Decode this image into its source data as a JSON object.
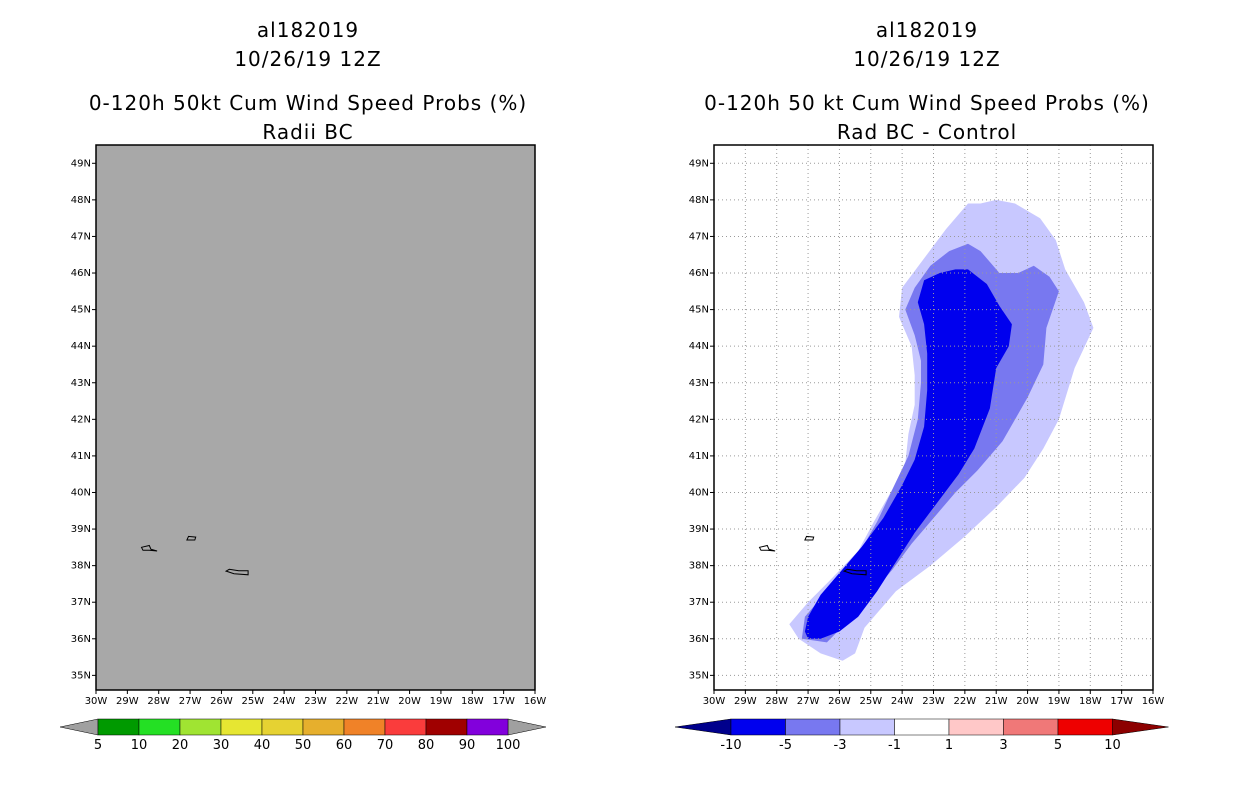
{
  "chart_data": [
    {
      "type": "heatmap",
      "title_line1": "al182019",
      "title_line2": "10/26/19 12Z",
      "title_line3": "0-120h 50kt Cum Wind Speed Probs (%)",
      "subtitle": "Radii BC",
      "y_ticks": [
        "35N",
        "36N",
        "37N",
        "38N",
        "39N",
        "40N",
        "41N",
        "42N",
        "43N",
        "44N",
        "45N",
        "46N",
        "47N",
        "48N",
        "49N"
      ],
      "x_ticks": [
        "30W",
        "29W",
        "28W",
        "27W",
        "26W",
        "25W",
        "24W",
        "23W",
        "22W",
        "21W",
        "20W",
        "19W",
        "18W",
        "17W",
        "16W"
      ],
      "lon_range": [
        -30,
        -16
      ],
      "lat_range": [
        34.6,
        49.5
      ],
      "grid": false,
      "background": "#a8a8a8",
      "colorbar": {
        "labels": [
          "5",
          "10",
          "20",
          "30",
          "40",
          "50",
          "60",
          "70",
          "80",
          "90",
          "100"
        ],
        "colors": [
          "#009a00",
          "#24e024",
          "#a0e432",
          "#e6e632",
          "#e6d232",
          "#e6af2d",
          "#f08228",
          "#fa3c3c",
          "#a00000",
          "#8200dc"
        ],
        "end_color": "#a0a0a0"
      }
    },
    {
      "type": "heatmap",
      "title_line1": "al182019",
      "title_line2": "10/26/19 12Z",
      "title_line3": "0-120h 50 kt Cum Wind Speed Probs (%)",
      "subtitle": "Rad BC - Control",
      "y_ticks": [
        "35N",
        "36N",
        "37N",
        "38N",
        "39N",
        "40N",
        "41N",
        "42N",
        "43N",
        "44N",
        "45N",
        "46N",
        "47N",
        "48N",
        "49N"
      ],
      "x_ticks": [
        "30W",
        "29W",
        "28W",
        "27W",
        "26W",
        "25W",
        "24W",
        "23W",
        "22W",
        "21W",
        "20W",
        "19W",
        "18W",
        "17W",
        "16W"
      ],
      "lon_range": [
        -30,
        -16
      ],
      "lat_range": [
        34.6,
        49.5
      ],
      "grid": true,
      "contour_levels": [
        -10,
        -5,
        -3,
        -1
      ],
      "contours": [
        {
          "level": -1,
          "color": "#c8c8ff",
          "points": [
            [
              -25.9,
              35.4
            ],
            [
              -26.6,
              35.6
            ],
            [
              -27.3,
              36.0
            ],
            [
              -27.6,
              36.4
            ],
            [
              -27.0,
              37.0
            ],
            [
              -26.3,
              37.6
            ],
            [
              -25.4,
              38.4
            ],
            [
              -24.9,
              39.2
            ],
            [
              -24.3,
              40.1
            ],
            [
              -23.9,
              40.8
            ],
            [
              -23.8,
              41.6
            ],
            [
              -23.6,
              42.4
            ],
            [
              -23.6,
              43.2
            ],
            [
              -23.7,
              44.0
            ],
            [
              -24.1,
              44.8
            ],
            [
              -24.0,
              45.6
            ],
            [
              -23.3,
              46.4
            ],
            [
              -22.6,
              47.2
            ],
            [
              -21.9,
              47.9
            ],
            [
              -21.5,
              47.9
            ],
            [
              -21.0,
              48.0
            ],
            [
              -20.4,
              47.9
            ],
            [
              -19.6,
              47.5
            ],
            [
              -19.1,
              46.9
            ],
            [
              -18.8,
              46.1
            ],
            [
              -18.2,
              45.2
            ],
            [
              -17.9,
              44.5
            ],
            [
              -18.5,
              43.4
            ],
            [
              -19.0,
              42.0
            ],
            [
              -19.5,
              41.2
            ],
            [
              -20.1,
              40.4
            ],
            [
              -21.0,
              39.6
            ],
            [
              -22.0,
              38.8
            ],
            [
              -23.1,
              38.0
            ],
            [
              -24.2,
              37.3
            ],
            [
              -25.2,
              36.3
            ],
            [
              -25.5,
              35.6
            ]
          ]
        },
        {
          "level": -3,
          "color": "#7878f0",
          "points": [
            [
              -26.4,
              35.9
            ],
            [
              -27.2,
              36.0
            ],
            [
              -27.1,
              36.6
            ],
            [
              -26.5,
              37.2
            ],
            [
              -26.0,
              37.7
            ],
            [
              -25.4,
              38.3
            ],
            [
              -24.8,
              39.2
            ],
            [
              -24.3,
              40.1
            ],
            [
              -23.8,
              41.0
            ],
            [
              -23.5,
              42.0
            ],
            [
              -23.4,
              43.0
            ],
            [
              -23.4,
              43.6
            ],
            [
              -23.6,
              44.3
            ],
            [
              -23.9,
              45.0
            ],
            [
              -23.6,
              45.6
            ],
            [
              -23.1,
              46.2
            ],
            [
              -22.5,
              46.6
            ],
            [
              -21.9,
              46.8
            ],
            [
              -21.5,
              46.6
            ],
            [
              -21.2,
              46.3
            ],
            [
              -20.9,
              46.0
            ],
            [
              -20.3,
              46.0
            ],
            [
              -19.8,
              46.2
            ],
            [
              -19.3,
              45.9
            ],
            [
              -19.0,
              45.5
            ],
            [
              -19.4,
              44.5
            ],
            [
              -19.5,
              43.5
            ],
            [
              -20.0,
              42.6
            ],
            [
              -20.8,
              41.4
            ],
            [
              -21.6,
              40.6
            ],
            [
              -22.3,
              40.0
            ],
            [
              -23.0,
              39.3
            ],
            [
              -23.7,
              38.6
            ],
            [
              -24.3,
              37.9
            ],
            [
              -25.0,
              37.2
            ],
            [
              -25.6,
              36.6
            ]
          ]
        },
        {
          "level": -5,
          "color": "#0000ee",
          "points": [
            [
              -27.0,
              36.0
            ],
            [
              -26.6,
              36.0
            ],
            [
              -26.0,
              36.2
            ],
            [
              -25.4,
              36.6
            ],
            [
              -24.8,
              37.3
            ],
            [
              -24.2,
              38.1
            ],
            [
              -23.6,
              38.9
            ],
            [
              -22.9,
              39.7
            ],
            [
              -22.2,
              40.5
            ],
            [
              -21.7,
              41.2
            ],
            [
              -21.2,
              42.3
            ],
            [
              -21.0,
              43.4
            ],
            [
              -20.6,
              44.0
            ],
            [
              -20.5,
              44.6
            ],
            [
              -20.9,
              45.1
            ],
            [
              -21.3,
              45.7
            ],
            [
              -21.9,
              46.1
            ],
            [
              -22.3,
              46.1
            ],
            [
              -22.8,
              46.0
            ],
            [
              -23.3,
              45.8
            ],
            [
              -23.5,
              45.2
            ],
            [
              -23.3,
              44.6
            ],
            [
              -23.2,
              43.8
            ],
            [
              -23.2,
              42.8
            ],
            [
              -23.3,
              41.8
            ],
            [
              -23.6,
              40.9
            ],
            [
              -24.0,
              40.2
            ],
            [
              -24.6,
              39.3
            ],
            [
              -25.3,
              38.5
            ],
            [
              -26.0,
              37.8
            ],
            [
              -26.6,
              37.2
            ],
            [
              -27.0,
              36.6
            ],
            [
              -27.1,
              36.2
            ]
          ]
        }
      ],
      "colorbar": {
        "labels": [
          "-10",
          "-5",
          "-3",
          "-1",
          "1",
          "3",
          "5",
          "10"
        ],
        "colors": [
          "#0000ee",
          "#7878f0",
          "#c8c8ff",
          "#ffffff",
          "#ffc8c8",
          "#f07878",
          "#ee0000"
        ],
        "low_end_color": "#00008c",
        "high_end_color": "#8c0000"
      }
    }
  ],
  "islands": [
    [
      [
        -28.55,
        38.5
      ],
      [
        -28.3,
        38.55
      ],
      [
        -28.25,
        38.45
      ],
      [
        -28.05,
        38.4
      ],
      [
        -28.3,
        38.42
      ],
      [
        -28.5,
        38.42
      ]
    ],
    [
      [
        -27.1,
        38.7
      ],
      [
        -26.85,
        38.7
      ],
      [
        -26.82,
        38.78
      ],
      [
        -27.05,
        38.8
      ]
    ],
    [
      [
        -25.85,
        37.85
      ],
      [
        -25.6,
        37.78
      ],
      [
        -25.15,
        37.75
      ],
      [
        -25.15,
        37.86
      ],
      [
        -25.45,
        37.86
      ],
      [
        -25.75,
        37.9
      ]
    ]
  ]
}
